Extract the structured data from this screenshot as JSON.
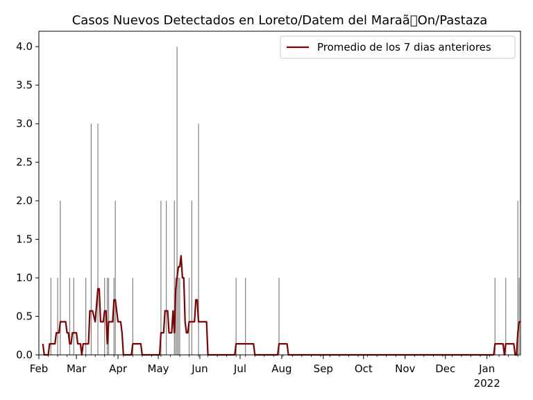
{
  "chart_data": {
    "type": "bar",
    "title": "Casos Nuevos Detectados en Loreto/Datem del Maraã\u0000On/Pastaza",
    "xlabel": "",
    "ylabel": "",
    "ylim": [
      0,
      4.2
    ],
    "xlim": [
      "2021-02-01",
      "2022-01-26"
    ],
    "yticks": [
      0.0,
      0.5,
      1.0,
      1.5,
      2.0,
      2.5,
      3.0,
      3.5,
      4.0
    ],
    "ytick_labels": [
      "0.0",
      "0.5",
      "1.0",
      "1.5",
      "2.0",
      "2.5",
      "3.0",
      "3.5",
      "4.0"
    ],
    "xticks": [
      {
        "date": "2021-02-01",
        "label": "Feb",
        "sub": ""
      },
      {
        "date": "2021-03-01",
        "label": "Mar",
        "sub": ""
      },
      {
        "date": "2021-04-01",
        "label": "Apr",
        "sub": ""
      },
      {
        "date": "2021-05-01",
        "label": "May",
        "sub": ""
      },
      {
        "date": "2021-06-01",
        "label": "Jun",
        "sub": ""
      },
      {
        "date": "2021-07-01",
        "label": "Jul",
        "sub": ""
      },
      {
        "date": "2021-08-01",
        "label": "Aug",
        "sub": ""
      },
      {
        "date": "2021-09-01",
        "label": "Sep",
        "sub": ""
      },
      {
        "date": "2021-10-01",
        "label": "Oct",
        "sub": ""
      },
      {
        "date": "2021-11-01",
        "label": "Nov",
        "sub": ""
      },
      {
        "date": "2021-12-01",
        "label": "Dec",
        "sub": ""
      },
      {
        "date": "2022-01-01",
        "label": "Jan",
        "sub": "2022"
      }
    ],
    "grid": false,
    "legend": {
      "position": "top-right",
      "entries": [
        "Promedio de los 7 dias anteriores"
      ]
    },
    "colors": {
      "bars": "#808080",
      "line": "#800000"
    },
    "bars": [
      {
        "date": "2021-02-10",
        "value": 1
      },
      {
        "date": "2021-02-15",
        "value": 1
      },
      {
        "date": "2021-02-17",
        "value": 2
      },
      {
        "date": "2021-02-24",
        "value": 1
      },
      {
        "date": "2021-02-27",
        "value": 1
      },
      {
        "date": "2021-03-08",
        "value": 1
      },
      {
        "date": "2021-03-12",
        "value": 3
      },
      {
        "date": "2021-03-17",
        "value": 3
      },
      {
        "date": "2021-03-22",
        "value": 1
      },
      {
        "date": "2021-03-24",
        "value": 1
      },
      {
        "date": "2021-03-25",
        "value": 1
      },
      {
        "date": "2021-03-29",
        "value": 1
      },
      {
        "date": "2021-03-30",
        "value": 2
      },
      {
        "date": "2021-04-12",
        "value": 1
      },
      {
        "date": "2021-05-03",
        "value": 2
      },
      {
        "date": "2021-05-07",
        "value": 2
      },
      {
        "date": "2021-05-13",
        "value": 2
      },
      {
        "date": "2021-05-14",
        "value": 1
      },
      {
        "date": "2021-05-15",
        "value": 4
      },
      {
        "date": "2021-05-16",
        "value": 1
      },
      {
        "date": "2021-05-17",
        "value": 1
      },
      {
        "date": "2021-05-24",
        "value": 1
      },
      {
        "date": "2021-05-26",
        "value": 2
      },
      {
        "date": "2021-05-31",
        "value": 3
      },
      {
        "date": "2021-06-28",
        "value": 1
      },
      {
        "date": "2021-07-05",
        "value": 1
      },
      {
        "date": "2021-07-30",
        "value": 1
      },
      {
        "date": "2022-01-07",
        "value": 1
      },
      {
        "date": "2022-01-15",
        "value": 1
      },
      {
        "date": "2022-01-24",
        "value": 2
      },
      {
        "date": "2022-01-25",
        "value": 1
      }
    ],
    "series": [
      {
        "name": "Promedio de los 7 dias anteriores",
        "type": "line",
        "points": [
          [
            "2021-02-04",
            0.143
          ],
          [
            "2021-02-05",
            0.0
          ],
          [
            "2021-02-08",
            0.0
          ],
          [
            "2021-02-09",
            0.143
          ],
          [
            "2021-02-13",
            0.143
          ],
          [
            "2021-02-14",
            0.286
          ],
          [
            "2021-02-16",
            0.286
          ],
          [
            "2021-02-17",
            0.429
          ],
          [
            "2021-02-21",
            0.429
          ],
          [
            "2021-02-22",
            0.286
          ],
          [
            "2021-02-23",
            0.286
          ],
          [
            "2021-02-24",
            0.143
          ],
          [
            "2021-02-25",
            0.143
          ],
          [
            "2021-02-26",
            0.286
          ],
          [
            "2021-03-01",
            0.286
          ],
          [
            "2021-03-02",
            0.143
          ],
          [
            "2021-03-04",
            0.143
          ],
          [
            "2021-03-05",
            0.0
          ],
          [
            "2021-03-06",
            0.143
          ],
          [
            "2021-03-10",
            0.143
          ],
          [
            "2021-03-11",
            0.571
          ],
          [
            "2021-03-13",
            0.571
          ],
          [
            "2021-03-15",
            0.429
          ],
          [
            "2021-03-17",
            0.857
          ],
          [
            "2021-03-18",
            0.857
          ],
          [
            "2021-03-19",
            0.429
          ],
          [
            "2021-03-21",
            0.429
          ],
          [
            "2021-03-22",
            0.571
          ],
          [
            "2021-03-23",
            0.571
          ],
          [
            "2021-03-24",
            0.143
          ],
          [
            "2021-03-25",
            0.429
          ],
          [
            "2021-03-28",
            0.429
          ],
          [
            "2021-03-29",
            0.714
          ],
          [
            "2021-03-30",
            0.714
          ],
          [
            "2021-03-31",
            0.571
          ],
          [
            "2021-04-01",
            0.429
          ],
          [
            "2021-04-03",
            0.429
          ],
          [
            "2021-04-04",
            0.286
          ],
          [
            "2021-04-05",
            0.0
          ],
          [
            "2021-04-11",
            0.0
          ],
          [
            "2021-04-12",
            0.143
          ],
          [
            "2021-04-18",
            0.143
          ],
          [
            "2021-04-19",
            0.0
          ],
          [
            "2021-05-02",
            0.0
          ],
          [
            "2021-05-03",
            0.286
          ],
          [
            "2021-05-05",
            0.286
          ],
          [
            "2021-05-06",
            0.571
          ],
          [
            "2021-05-08",
            0.571
          ],
          [
            "2021-05-09",
            0.286
          ],
          [
            "2021-05-11",
            0.286
          ],
          [
            "2021-05-12",
            0.571
          ],
          [
            "2021-05-13",
            0.286
          ],
          [
            "2021-05-14",
            0.857
          ],
          [
            "2021-05-15",
            1.0
          ],
          [
            "2021-05-16",
            1.143
          ],
          [
            "2021-05-17",
            1.143
          ],
          [
            "2021-05-18",
            1.286
          ],
          [
            "2021-05-19",
            1.0
          ],
          [
            "2021-05-20",
            1.0
          ],
          [
            "2021-05-21",
            0.429
          ],
          [
            "2021-05-22",
            0.286
          ],
          [
            "2021-05-23",
            0.286
          ],
          [
            "2021-05-24",
            0.429
          ],
          [
            "2021-05-28",
            0.429
          ],
          [
            "2021-05-29",
            0.714
          ],
          [
            "2021-05-30",
            0.714
          ],
          [
            "2021-05-31",
            0.429
          ],
          [
            "2021-06-06",
            0.429
          ],
          [
            "2021-06-07",
            0.0
          ],
          [
            "2021-06-27",
            0.0
          ],
          [
            "2021-06-28",
            0.143
          ],
          [
            "2021-07-10",
            0.143
          ],
          [
            "2021-07-11",
            0.143
          ],
          [
            "2021-07-12",
            0.0
          ],
          [
            "2021-07-29",
            0.0
          ],
          [
            "2021-07-30",
            0.143
          ],
          [
            "2021-08-05",
            0.143
          ],
          [
            "2021-08-06",
            0.0
          ],
          [
            "2022-01-06",
            0.0
          ],
          [
            "2022-01-07",
            0.143
          ],
          [
            "2022-01-13",
            0.143
          ],
          [
            "2022-01-14",
            0.0
          ],
          [
            "2022-01-15",
            0.143
          ],
          [
            "2022-01-21",
            0.143
          ],
          [
            "2022-01-22",
            0.0
          ],
          [
            "2022-01-23",
            0.0
          ],
          [
            "2022-01-24",
            0.286
          ],
          [
            "2022-01-25",
            0.429
          ],
          [
            "2022-01-26",
            0.429
          ]
        ]
      }
    ]
  }
}
